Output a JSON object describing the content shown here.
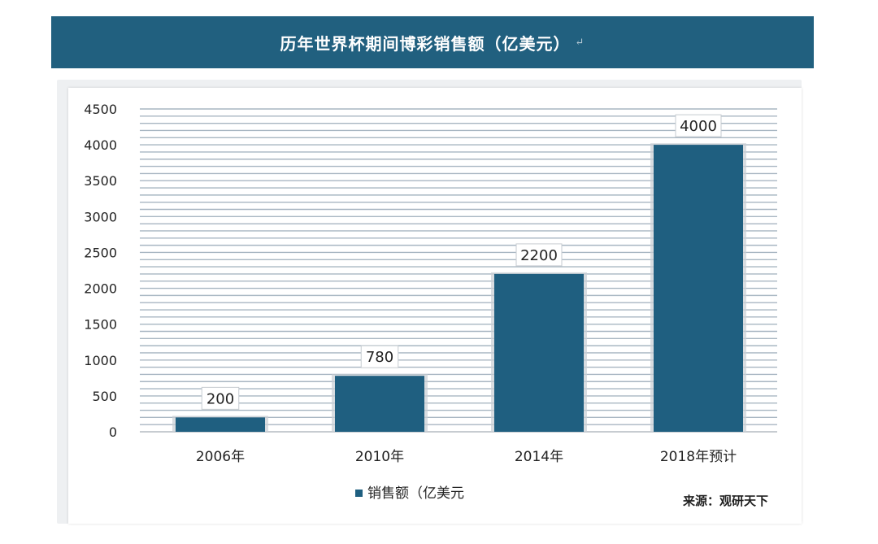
{
  "header": {
    "title": "历年世界杯期间博彩销售额（亿美元）",
    "mark": "↵"
  },
  "chart_data": {
    "type": "bar",
    "title": "历年世界杯期间博彩销售额（亿美元）",
    "categories": [
      "2006年",
      "2010年",
      "2014年",
      "2018年预计"
    ],
    "series": [
      {
        "name": "销售额（亿美元",
        "values": [
          200,
          780,
          2200,
          4000
        ]
      }
    ],
    "ylim": [
      0,
      4500
    ],
    "yticks": [
      0,
      500,
      1000,
      1500,
      2000,
      2500,
      3000,
      3500,
      4000,
      4500
    ],
    "xlabel": "",
    "ylabel": "",
    "grid": true,
    "legend": "bottom",
    "bar_color": "#1f5f80"
  },
  "legend": {
    "label": "销售额（亿美元"
  },
  "source": "来源：观研天下"
}
